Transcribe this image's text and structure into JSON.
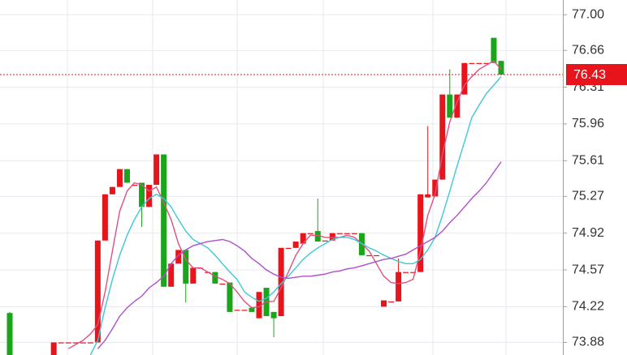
{
  "chart_data": {
    "type": "candlestick",
    "open": [
      74.16,
      null,
      null,
      null,
      null,
      null,
      73.76,
      73.88,
      73.88,
      73.88,
      73.88,
      73.88,
      73.88,
      74.85,
      75.29,
      75.36,
      75.53,
      75.38,
      75.4,
      75.17,
      75.38,
      75.67,
      74.41,
      74.63,
      74.76,
      74.44,
      74.59,
      74.55,
      74.55,
      74.44,
      74.45,
      74.19,
      74.19,
      74.21,
      74.11,
      74.4,
      74.17,
      74.13,
      74.78,
      74.78,
      74.82,
      74.92,
      74.94,
      74.85,
      74.85,
      74.92,
      74.92,
      74.92,
      74.92,
      74.71,
      74.71,
      74.22,
      74.27,
      74.27,
      74.55,
      74.55,
      74.55,
      75.26,
      75.27,
      75.43,
      76.24,
      76.02,
      76.24,
      76.54,
      76.54,
      76.54,
      76.78,
      76.56
    ],
    "high": [
      74.17,
      null,
      null,
      null,
      null,
      null,
      73.88,
      73.88,
      73.88,
      73.88,
      73.88,
      73.88,
      74.85,
      75.29,
      75.36,
      75.53,
      75.53,
      75.38,
      75.4,
      75.38,
      75.67,
      75.67,
      74.63,
      74.76,
      74.76,
      74.59,
      74.59,
      74.55,
      74.55,
      74.44,
      74.45,
      74.19,
      74.19,
      74.21,
      74.36,
      74.4,
      74.17,
      74.78,
      74.78,
      74.84,
      74.92,
      74.92,
      75.25,
      74.85,
      74.92,
      74.92,
      74.92,
      74.92,
      74.92,
      74.71,
      74.71,
      74.28,
      74.27,
      74.68,
      74.55,
      74.55,
      75.29,
      75.94,
      75.43,
      76.24,
      76.48,
      76.24,
      76.54,
      76.54,
      76.54,
      76.54,
      76.78,
      76.56
    ],
    "low": [
      73.76,
      null,
      null,
      null,
      null,
      null,
      73.76,
      73.88,
      73.88,
      73.88,
      73.88,
      73.88,
      73.88,
      74.85,
      75.29,
      75.36,
      75.4,
      75.38,
      74.98,
      75.17,
      75.38,
      74.41,
      74.41,
      74.63,
      74.26,
      74.44,
      74.59,
      74.55,
      74.44,
      74.44,
      74.17,
      74.19,
      74.19,
      74.17,
      74.11,
      74.13,
      73.93,
      74.13,
      74.78,
      74.78,
      74.82,
      74.92,
      74.84,
      74.85,
      74.85,
      74.92,
      74.92,
      74.92,
      74.71,
      74.71,
      74.71,
      74.22,
      74.27,
      74.27,
      74.55,
      74.55,
      74.55,
      75.26,
      75.27,
      75.43,
      76.02,
      76.02,
      76.24,
      76.54,
      76.54,
      76.54,
      76.54,
      76.43
    ],
    "close": [
      73.76,
      null,
      null,
      null,
      null,
      null,
      73.88,
      73.88,
      73.88,
      73.88,
      73.88,
      73.88,
      74.85,
      75.29,
      75.36,
      75.53,
      75.4,
      75.38,
      75.17,
      75.38,
      75.67,
      74.41,
      74.63,
      74.76,
      74.44,
      74.59,
      74.59,
      74.55,
      74.44,
      74.44,
      74.17,
      74.19,
      74.19,
      74.17,
      74.36,
      74.13,
      74.11,
      74.78,
      74.78,
      74.84,
      74.92,
      74.92,
      74.84,
      74.85,
      74.92,
      74.92,
      74.92,
      74.92,
      74.71,
      74.71,
      74.71,
      74.28,
      74.27,
      74.55,
      74.55,
      74.55,
      75.29,
      75.29,
      75.43,
      76.24,
      76.02,
      76.24,
      76.54,
      76.54,
      76.54,
      76.54,
      76.54,
      76.43
    ],
    "up_color": "#e8141c",
    "down_color": "#1aa51a",
    "series": [
      {
        "color": "#e0507e",
        "values": [
          null,
          null,
          null,
          null,
          null,
          null,
          null,
          null,
          73.82,
          73.86,
          73.9,
          73.96,
          74.05,
          74.36,
          74.75,
          75.13,
          75.32,
          75.4,
          75.38,
          75.32,
          75.36,
          75.21,
          75.05,
          74.82,
          74.67,
          74.59,
          74.59,
          74.55,
          74.51,
          74.48,
          74.44,
          74.36,
          74.27,
          74.21,
          74.22,
          74.27,
          74.27,
          74.4,
          74.55,
          74.71,
          74.82,
          74.9,
          74.9,
          74.88,
          74.88,
          74.88,
          74.9,
          74.88,
          74.82,
          74.75,
          74.63,
          74.51,
          74.45,
          74.44,
          74.45,
          74.48,
          74.75,
          75.09,
          75.29,
          75.67,
          75.98,
          76.17,
          76.33,
          76.41,
          76.48,
          76.52,
          76.56,
          76.48
        ]
      },
      {
        "color": "#3cc8d8",
        "values": [
          null,
          null,
          null,
          null,
          null,
          null,
          null,
          null,
          null,
          null,
          null,
          73.76,
          73.9,
          74.21,
          74.48,
          74.71,
          74.9,
          75.05,
          75.17,
          75.25,
          75.29,
          75.25,
          75.17,
          75.05,
          74.94,
          74.86,
          74.82,
          74.78,
          74.71,
          74.63,
          74.55,
          74.48,
          74.36,
          74.31,
          74.27,
          74.3,
          74.36,
          74.44,
          74.51,
          74.59,
          74.67,
          74.73,
          74.78,
          74.82,
          74.86,
          74.88,
          74.88,
          74.86,
          74.82,
          74.78,
          74.75,
          74.71,
          74.68,
          74.65,
          74.63,
          74.63,
          74.67,
          74.76,
          74.88,
          75.09,
          75.32,
          75.56,
          75.79,
          76.02,
          76.14,
          76.25,
          76.33,
          76.41
        ]
      },
      {
        "color": "#b050c8",
        "values": [
          null,
          null,
          null,
          null,
          null,
          null,
          null,
          null,
          null,
          null,
          null,
          null,
          73.82,
          73.9,
          74.01,
          74.13,
          74.21,
          74.27,
          74.32,
          74.4,
          74.45,
          74.51,
          74.63,
          74.71,
          74.76,
          74.8,
          74.82,
          74.84,
          74.85,
          74.86,
          74.84,
          74.8,
          74.75,
          74.68,
          74.63,
          74.57,
          74.53,
          74.5,
          74.49,
          74.5,
          74.51,
          74.51,
          74.52,
          74.53,
          74.55,
          74.56,
          74.58,
          74.59,
          74.61,
          74.63,
          74.65,
          74.67,
          74.68,
          74.7,
          74.72,
          74.76,
          74.8,
          74.84,
          74.88,
          74.94,
          75.02,
          75.09,
          75.17,
          75.25,
          75.32,
          75.4,
          75.5,
          75.6
        ]
      }
    ],
    "ylim": [
      73.76,
      77.14
    ],
    "yticks": [
      {
        "value": 77,
        "label": "77.00"
      },
      76.66,
      76.31,
      75.96,
      75.61,
      75.27,
      74.92,
      74.57,
      74.22,
      73.88
    ],
    "grid": true,
    "last_price": 76.43,
    "last_price_color": "#e8141c"
  }
}
